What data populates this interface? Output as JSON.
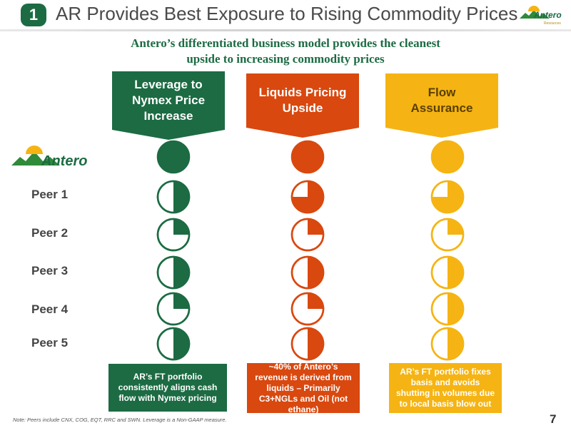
{
  "header": {
    "number": "1",
    "title": "AR Provides Best Exposure to Rising Commodity Prices",
    "logo_text": "Antero",
    "logo_subtext": "Resources"
  },
  "subtitle": {
    "line1": "Antero’s differentiated business model provides the cleanest",
    "line2": "upside to increasing commodity prices"
  },
  "columns": [
    {
      "label_lines": [
        "Leverage to",
        "Nymex Price",
        "Increase"
      ],
      "color": "#1c6b43",
      "footer": "AR’s FT portfolio consistently aligns cash flow with Nymex pricing"
    },
    {
      "label_lines": [
        "Liquids Pricing",
        "Upside"
      ],
      "color": "#d9480f",
      "footer": "~40% of Antero’s revenue is derived from liquids – Primarily C3+NGLs and Oil (not ethane)"
    },
    {
      "label_lines": [
        "Flow",
        "Assurance"
      ],
      "color": "#f5b413",
      "footer": "AR’s FT portfolio fixes basis and avoids shutting in volumes due to local basis blow out"
    }
  ],
  "rows": [
    {
      "label": "Antero",
      "is_logo": true,
      "levels": [
        1.0,
        1.0,
        1.0
      ]
    },
    {
      "label": "Peer 1",
      "levels": [
        0.5,
        0.75,
        0.75
      ]
    },
    {
      "label": "Peer 2",
      "levels": [
        0.25,
        0.25,
        0.25
      ]
    },
    {
      "label": "Peer 3",
      "levels": [
        0.5,
        0.5,
        0.5
      ]
    },
    {
      "label": "Peer 4",
      "levels": [
        0.25,
        0.25,
        0.5
      ]
    },
    {
      "label": "Peer 5",
      "levels": [
        0.5,
        0.5,
        0.5
      ]
    }
  ],
  "note": "Note:  Peers include CNX, COG, EQT, RRC and SWN.  Leverage is a Non-GAAP measure.",
  "page_number": "7"
}
